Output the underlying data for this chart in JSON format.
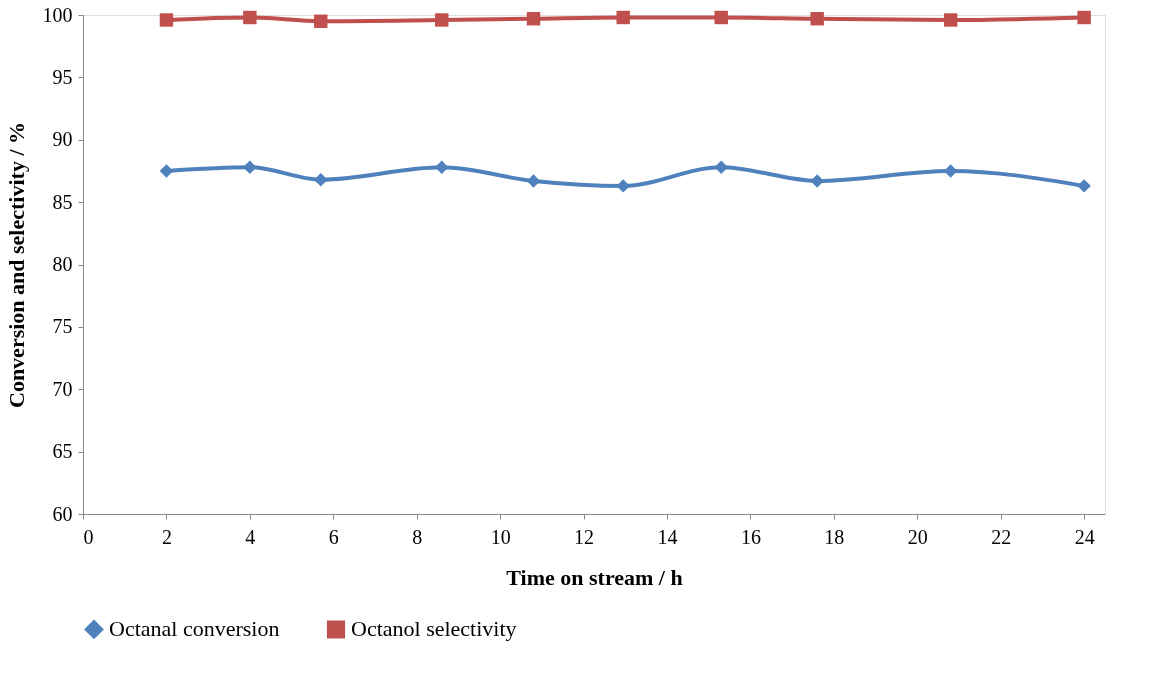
{
  "chart_data": {
    "type": "line",
    "xlabel": "Time on stream / h",
    "ylabel": "Conversion and selectivity / %",
    "x": [
      2,
      4,
      5.7,
      8.6,
      10.8,
      12.95,
      15.3,
      17.6,
      20.8,
      24
    ],
    "series": [
      {
        "name": "Octanal conversion",
        "color": "#4f81bd",
        "marker": "diamond",
        "values": [
          87.5,
          87.8,
          86.8,
          87.8,
          86.7,
          86.3,
          87.8,
          86.7,
          87.5,
          86.3
        ]
      },
      {
        "name": "Octanol selectivity",
        "color": "#c0504d",
        "marker": "square",
        "values": [
          99.6,
          99.8,
          99.5,
          99.6,
          99.7,
          99.8,
          99.8,
          99.7,
          99.6,
          99.8
        ]
      }
    ],
    "xlim": [
      0,
      24.5
    ],
    "xticks": [
      0,
      2,
      4,
      6,
      8,
      10,
      12,
      14,
      16,
      18,
      20,
      22,
      24
    ],
    "ylim": [
      60,
      100
    ],
    "yticks": [
      60,
      65,
      70,
      75,
      80,
      85,
      90,
      95,
      100
    ],
    "grid": false,
    "legend": "bottom",
    "line_style": "solid"
  }
}
